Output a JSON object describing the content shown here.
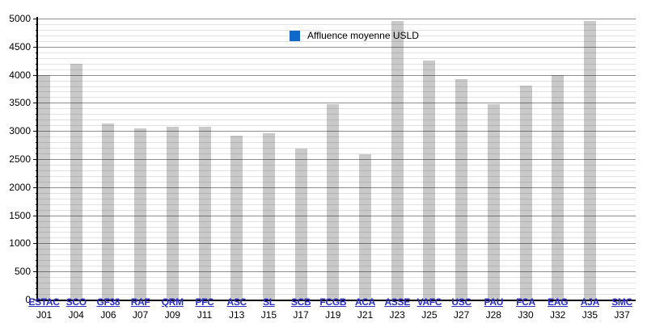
{
  "chart_data": {
    "type": "bar",
    "title": "",
    "legend": [
      "Affluence moyenne USLD"
    ],
    "legend_position": "top-center",
    "categories": [
      "ESTAC",
      "SCO",
      "GF38",
      "RAF",
      "QRM",
      "PFC",
      "ASC",
      "SL",
      "SCB",
      "FCGB",
      "ACA",
      "ASSE",
      "VAFC",
      "USC",
      "PAU",
      "FCA",
      "EAG",
      "AJA",
      "SMC"
    ],
    "matchdays": [
      "J01",
      "J04",
      "J06",
      "J07",
      "J09",
      "J11",
      "J13",
      "J15",
      "J17",
      "J19",
      "J21",
      "J23",
      "J25",
      "J27",
      "J28",
      "J30",
      "J32",
      "J35",
      "J37"
    ],
    "values": [
      4000,
      4200,
      3130,
      3040,
      3080,
      3080,
      2910,
      2960,
      2680,
      3480,
      2590,
      4950,
      4260,
      3920,
      3470,
      3810,
      3990,
      4950,
      0
    ],
    "xlabel": "",
    "ylabel": "",
    "ylim": [
      0,
      5000
    ],
    "y_major_step": 500,
    "y_minor_step": 100,
    "y_tick_labels": [
      "0",
      "500",
      "1000",
      "1500",
      "2000",
      "2500",
      "3000",
      "3500",
      "4000",
      "4500",
      "5000"
    ],
    "grid": "horizontal, minor every 100 light, major every 500 dark"
  },
  "legend": {
    "label": "Affluence moyenne USLD"
  },
  "colors": {
    "bar": "#c9c9c9",
    "major_grid": "#8f8f8f",
    "minor_grid": "#e3e3e3",
    "axis": "#000000",
    "legend_swatch": "#1069c8",
    "team_link": "#2b2fc2",
    "text": "#000000"
  }
}
